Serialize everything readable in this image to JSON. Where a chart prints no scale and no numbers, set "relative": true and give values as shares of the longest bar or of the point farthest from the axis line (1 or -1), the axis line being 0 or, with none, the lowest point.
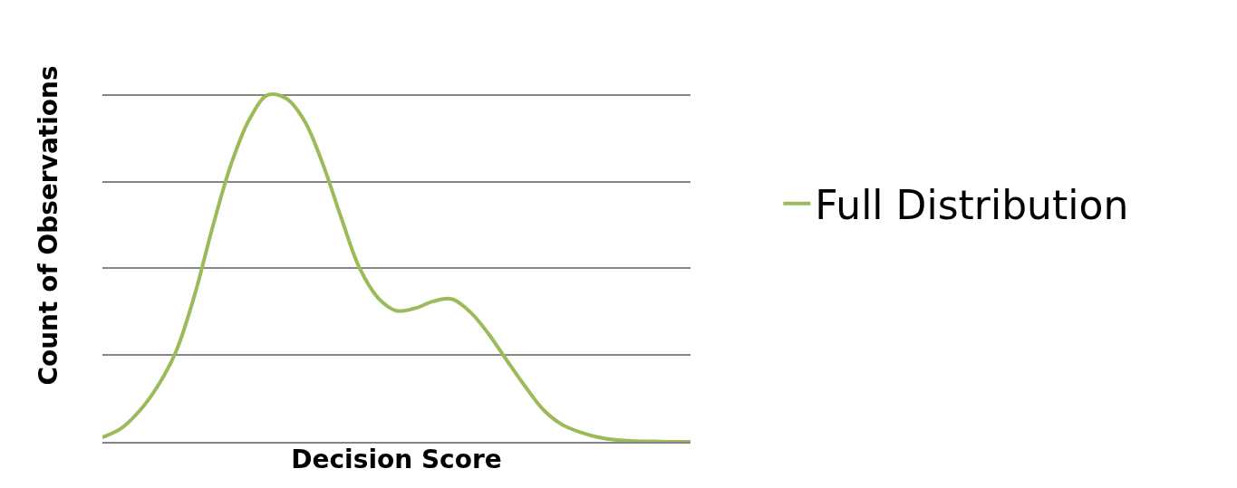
{
  "chart_data": {
    "type": "line",
    "relative": true,
    "xlabel": "Decision Score",
    "ylabel": "Count of Observations",
    "categories": [
      null,
      null,
      null,
      null,
      null,
      null,
      null,
      null,
      null,
      null,
      null,
      null,
      null,
      null,
      null,
      null,
      null,
      null,
      null,
      null,
      null,
      null,
      null,
      null,
      null,
      null,
      null,
      null,
      null,
      null,
      null,
      null,
      null
    ],
    "series": [
      {
        "name": "Full Distribution",
        "color": "#9bbb59",
        "values": [
          0.013,
          0.038,
          0.088,
          0.16,
          0.26,
          0.42,
          0.62,
          0.8,
          0.93,
          1,
          0.99,
          0.925,
          0.8,
          0.645,
          0.5,
          0.415,
          0.378,
          0.385,
          0.405,
          0.412,
          0.375,
          0.312,
          0.235,
          0.16,
          0.092,
          0.05,
          0.028,
          0.013,
          0.005,
          0.002,
          0.001,
          0,
          0
        ]
      }
    ],
    "grid": "y",
    "legend": "right",
    "marker": "none",
    "line_style": "solid"
  }
}
